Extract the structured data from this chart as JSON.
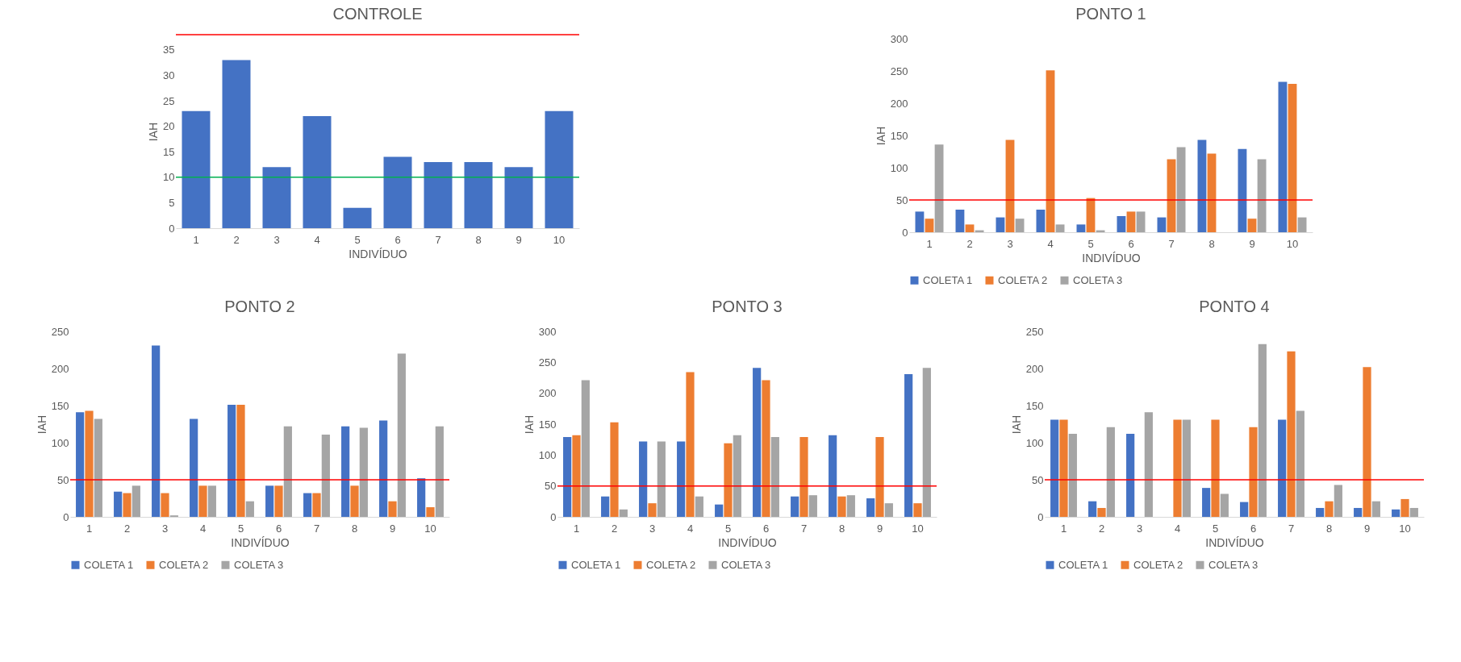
{
  "chart_data": [
    {
      "type": "bar",
      "title": "CONTROLE",
      "xlabel": "INDIVÍDUO",
      "ylabel": "IAH",
      "categories": [
        "1",
        "2",
        "3",
        "4",
        "5",
        "6",
        "7",
        "8",
        "9",
        "10"
      ],
      "values": [
        23,
        33,
        12,
        22,
        4,
        14,
        13,
        13,
        12,
        23
      ],
      "color": "#4472c4",
      "ylim": [
        0,
        38
      ],
      "yticks": [
        0,
        5,
        10,
        15,
        20,
        25,
        30,
        35
      ],
      "ref_lines": [
        {
          "axis": "y",
          "value": 10,
          "color": "#00b050"
        },
        {
          "axis": "y",
          "value": 38,
          "color": "#ff0000"
        }
      ]
    },
    {
      "type": "bar",
      "title": "PONTO 1",
      "xlabel": "INDIVÍDUO",
      "ylabel": "IAH",
      "categories": [
        "1",
        "2",
        "3",
        "4",
        "5",
        "6",
        "7",
        "8",
        "9",
        "10"
      ],
      "series": [
        {
          "name": "COLETA 1",
          "color": "#4472c4",
          "values": [
            32,
            35,
            23,
            35,
            12,
            25,
            23,
            143,
            129,
            233
          ]
        },
        {
          "name": "COLETA 2",
          "color": "#ed7d31",
          "values": [
            21,
            12,
            143,
            251,
            53,
            32,
            113,
            122,
            21,
            230
          ]
        },
        {
          "name": "COLETA 3",
          "color": "#a5a5a5",
          "values": [
            136,
            3,
            21,
            12,
            3,
            32,
            132,
            null,
            113,
            23
          ]
        }
      ],
      "ylim": [
        0,
        300
      ],
      "yticks": [
        0,
        50,
        100,
        150,
        200,
        250,
        300
      ],
      "legend": "bottom",
      "ref_lines": [
        {
          "axis": "y",
          "value": 50,
          "color": "#ff0000"
        }
      ]
    },
    {
      "type": "bar",
      "title": "PONTO 2",
      "xlabel": "INDIVÍDUO",
      "ylabel": "IAH",
      "categories": [
        "1",
        "2",
        "3",
        "4",
        "5",
        "6",
        "7",
        "8",
        "9",
        "10"
      ],
      "series": [
        {
          "name": "COLETA 1",
          "color": "#4472c4",
          "values": [
            141,
            34,
            231,
            132,
            151,
            42,
            32,
            122,
            130,
            52
          ]
        },
        {
          "name": "COLETA 2",
          "color": "#ed7d31",
          "values": [
            143,
            32,
            32,
            42,
            151,
            42,
            32,
            42,
            21,
            13
          ]
        },
        {
          "name": "COLETA 3",
          "color": "#a5a5a5",
          "values": [
            132,
            42,
            2,
            42,
            21,
            122,
            111,
            120,
            220,
            122
          ]
        }
      ],
      "ylim": [
        0,
        250
      ],
      "yticks": [
        0,
        50,
        100,
        150,
        200,
        250
      ],
      "legend": "bottom",
      "ref_lines": [
        {
          "axis": "y",
          "value": 50,
          "color": "#ff0000"
        }
      ]
    },
    {
      "type": "bar",
      "title": "PONTO 3",
      "xlabel": "INDIVÍDUO",
      "ylabel": "IAH",
      "categories": [
        "1",
        "2",
        "3",
        "4",
        "5",
        "6",
        "7",
        "8",
        "9",
        "10"
      ],
      "series": [
        {
          "name": "COLETA 1",
          "color": "#4472c4",
          "values": [
            129,
            33,
            122,
            122,
            20,
            241,
            33,
            132,
            30,
            231
          ]
        },
        {
          "name": "COLETA 2",
          "color": "#ed7d31",
          "values": [
            132,
            153,
            22,
            234,
            119,
            221,
            129,
            33,
            129,
            22
          ]
        },
        {
          "name": "COLETA 3",
          "color": "#a5a5a5",
          "values": [
            221,
            12,
            122,
            33,
            132,
            129,
            35,
            35,
            22,
            241
          ]
        }
      ],
      "ylim": [
        0,
        300
      ],
      "yticks": [
        0,
        50,
        100,
        150,
        200,
        250,
        300
      ],
      "legend": "bottom",
      "ref_lines": [
        {
          "axis": "y",
          "value": 50,
          "color": "#ff0000"
        }
      ]
    },
    {
      "type": "bar",
      "title": "PONTO 4",
      "xlabel": "INDIVÍDUO",
      "ylabel": "IAH",
      "categories": [
        "1",
        "2",
        "3",
        "4",
        "5",
        "6",
        "7",
        "8",
        "9",
        "10"
      ],
      "series": [
        {
          "name": "COLETA 1",
          "color": "#4472c4",
          "values": [
            131,
            21,
            112,
            null,
            39,
            20,
            131,
            12,
            12,
            10
          ]
        },
        {
          "name": "COLETA 2",
          "color": "#ed7d31",
          "values": [
            131,
            12,
            null,
            131,
            131,
            121,
            223,
            21,
            202,
            24
          ]
        },
        {
          "name": "COLETA 3",
          "color": "#a5a5a5",
          "values": [
            112,
            121,
            141,
            131,
            31,
            233,
            143,
            43,
            21,
            12
          ]
        }
      ],
      "ylim": [
        0,
        250
      ],
      "yticks": [
        0,
        50,
        100,
        150,
        200,
        250
      ],
      "legend": "bottom",
      "ref_lines": [
        {
          "axis": "y",
          "value": 50,
          "color": "#ff0000"
        }
      ]
    }
  ]
}
